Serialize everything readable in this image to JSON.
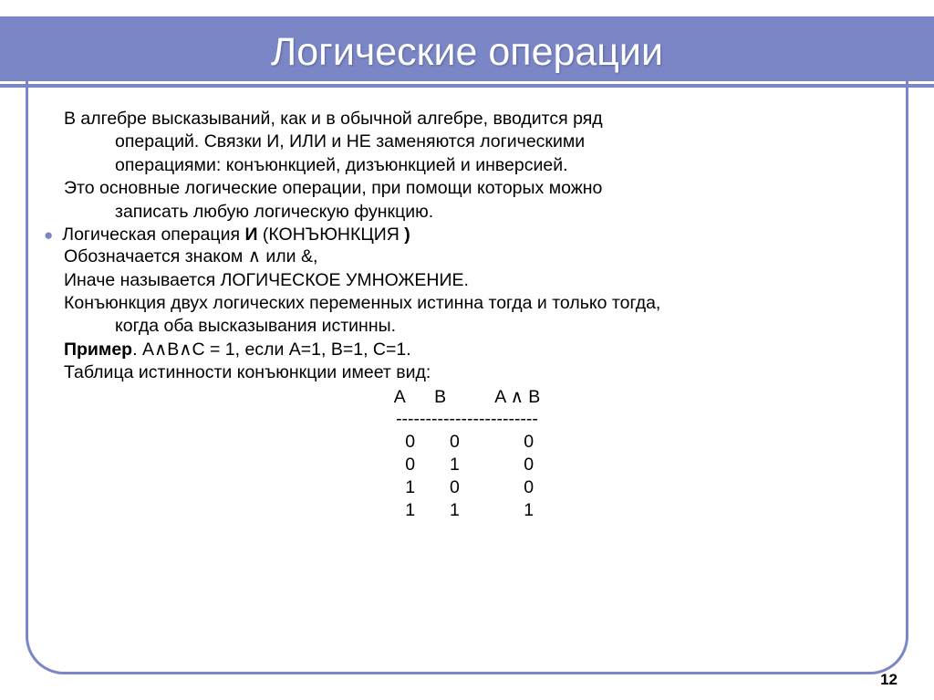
{
  "title": "Логические операции",
  "intro1": "В алгебре высказываний, как и в обычной алгебре, вводится ряд",
  "intro1b": "операций. Связки И, ИЛИ и НЕ заменяются логическими",
  "intro1c": "операциями: конъюнкцией, дизъюнкцией и инверсией.",
  "intro2": "Это основные логические операции, при помощи которых можно",
  "intro2b": "записать любую логическую функцию.",
  "bullet_pre": "Логическая операция ",
  "bullet_bold1": "И",
  "bullet_mid": " (КОНЪЮНКЦИЯ ",
  "bullet_bold2": ")",
  "symline": "Обозначается знаком ∧ или &,",
  "altname": "Иначе называется ЛОГИЧЕСКОЕ УМНОЖЕНИЕ.",
  "def1": "Конъюнкция двух логических переменных истинна тогда и только тогда,",
  "def1b": "когда оба высказывания истинны.",
  "example_label": "Пример",
  "example_rest": ". A∧B∧C = 1, если A=1, B=1, C=1.",
  "tableintro": "Таблица истинности конъюнкции имеет вид:",
  "truth": {
    "header": "A      B          A ∧ B",
    "divider": "------------------------",
    "rows": [
      " 0       0             0",
      " 0       1             0",
      " 1       0             0",
      " 1       1             1"
    ]
  },
  "page": "12",
  "colors": {
    "accent": "#7b86c6",
    "text": "#000000",
    "title_text": "#ffffff",
    "background": "#ffffff"
  }
}
